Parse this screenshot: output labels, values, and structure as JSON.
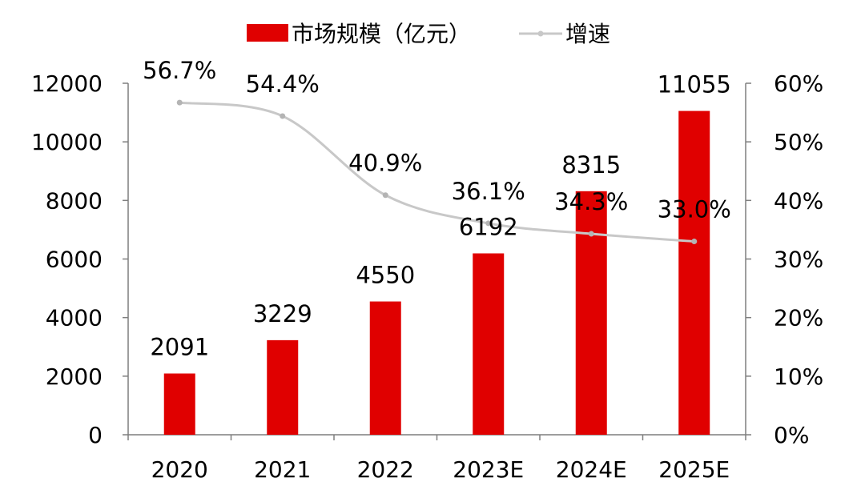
{
  "chart_data": {
    "type": "bar",
    "categories": [
      "2020",
      "2021",
      "2022",
      "2023E",
      "2024E",
      "2025E"
    ],
    "series": [
      {
        "name": "市场规模（亿元）",
        "type": "bar",
        "axis": "left",
        "color": "#e00000",
        "values": [
          2091,
          3229,
          4550,
          6192,
          8315,
          11055
        ],
        "labels": [
          "2091",
          "3229",
          "4550",
          "6192",
          "8315",
          "11055"
        ]
      },
      {
        "name": "增速",
        "type": "line",
        "axis": "right",
        "color": "#c8c8c8",
        "values": [
          56.7,
          54.4,
          40.9,
          36.1,
          34.3,
          33.0
        ],
        "labels": [
          "56.7%",
          "54.4%",
          "40.9%",
          "36.1%",
          "34.3%",
          "33.0%"
        ]
      }
    ],
    "y_left": {
      "min": 0,
      "max": 12000,
      "ticks": [
        "0",
        "2000",
        "4000",
        "6000",
        "8000",
        "10000",
        "12000"
      ]
    },
    "y_right": {
      "min": 0,
      "max": 60,
      "ticks": [
        "0%",
        "10%",
        "20%",
        "30%",
        "40%",
        "50%",
        "60%"
      ]
    },
    "grid": false,
    "legend_position": "top"
  }
}
